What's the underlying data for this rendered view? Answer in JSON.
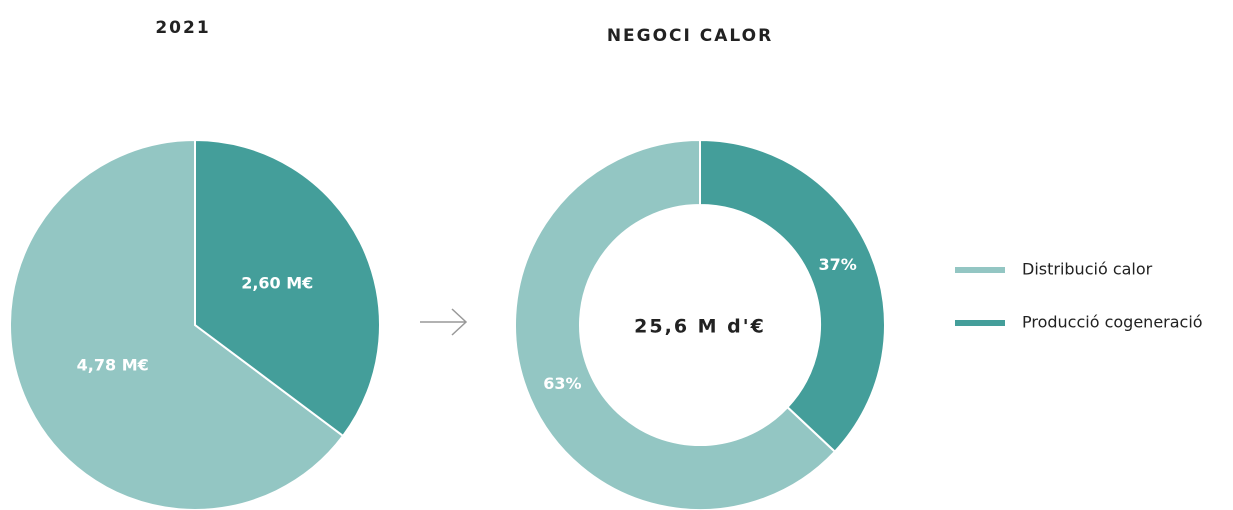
{
  "chart_data": [
    {
      "type": "pie",
      "title": "2021",
      "values": [
        4.78,
        2.6
      ],
      "value_labels": [
        "4,78 M€",
        "2,60 M€"
      ],
      "colors": [
        "#93c6c3",
        "#449e9a"
      ]
    },
    {
      "type": "donut",
      "title": "NEGOCI CALOR",
      "categories": [
        "Distribució calor",
        "Producció cogeneració"
      ],
      "values": [
        63,
        37
      ],
      "value_labels": [
        "63%",
        "37%"
      ],
      "colors": [
        "#93c6c3",
        "#449e9a"
      ],
      "center_label": "25,6 M d'€",
      "legend": "right"
    }
  ]
}
